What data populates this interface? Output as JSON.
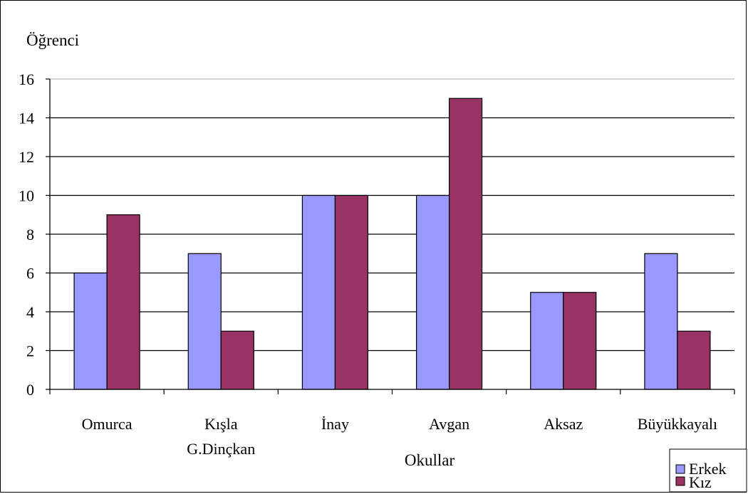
{
  "chart_data": {
    "type": "bar",
    "title": "",
    "ylabel": "Öğrenci",
    "xlabel": "Okullar",
    "categories": [
      [
        "Omurca"
      ],
      [
        "Kışla",
        "G.Dinçkan"
      ],
      [
        "İnay"
      ],
      [
        "Avgan"
      ],
      [
        "Aksaz"
      ],
      [
        "Büyükkayalı"
      ]
    ],
    "ylim": [
      0,
      16
    ],
    "yticks": [
      "0",
      "2",
      "4",
      "6",
      "8",
      "10",
      "12",
      "14",
      "16"
    ],
    "grid": true,
    "legend_position": "bottom-right",
    "series": [
      {
        "name": "Erkek",
        "color": "#9999ff",
        "values": [
          6,
          7,
          10,
          10,
          5,
          7
        ]
      },
      {
        "name": "Kız",
        "color": "#993366",
        "values": [
          9,
          3,
          10,
          15,
          5,
          3
        ]
      }
    ]
  }
}
